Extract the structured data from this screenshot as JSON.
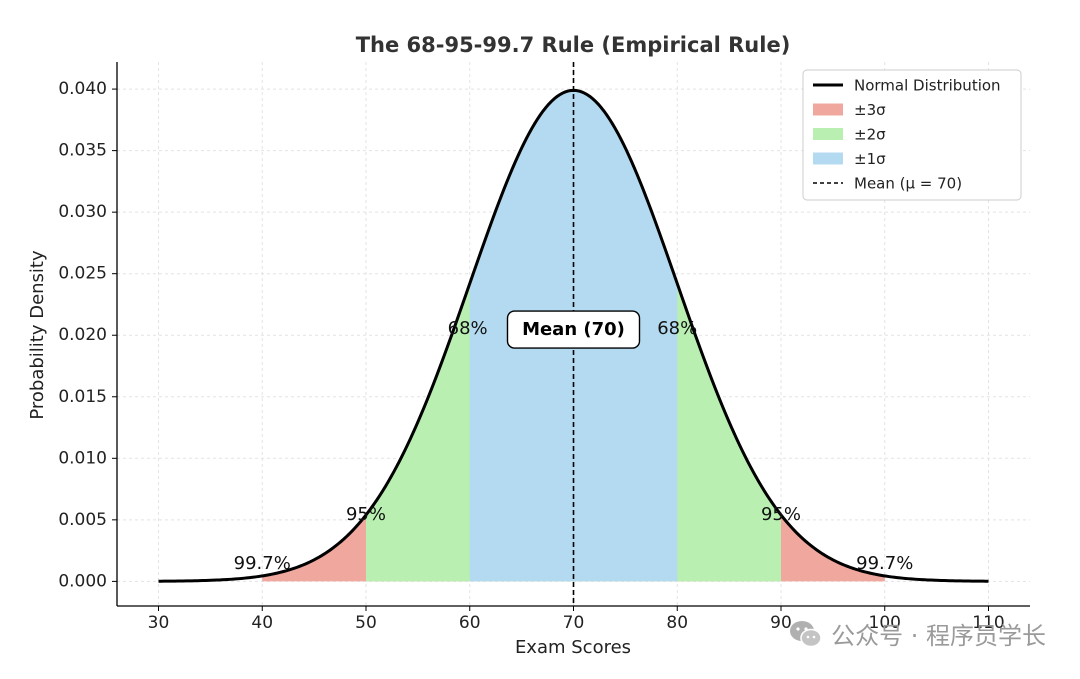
{
  "chart_data": {
    "type": "area",
    "title": "The 68-95-99.7 Rule (Empirical Rule)",
    "xlabel": "Exam Scores",
    "ylabel": "Probability Density",
    "xlim": [
      26,
      114
    ],
    "ylim": [
      -0.002,
      0.0422
    ],
    "xticks": [
      30,
      40,
      50,
      60,
      70,
      80,
      90,
      100,
      110
    ],
    "yticks": [
      0.0,
      0.005,
      0.01,
      0.015,
      0.02,
      0.025,
      0.03,
      0.035,
      0.04
    ],
    "ytick_labels": [
      "0.000",
      "0.005",
      "0.010",
      "0.015",
      "0.020",
      "0.025",
      "0.030",
      "0.035",
      "0.040"
    ],
    "grid": true,
    "legend_position": "top-right",
    "distribution": {
      "mean": 70,
      "std": 10,
      "x_range": [
        30,
        110
      ]
    },
    "series": [
      {
        "name": "Normal Distribution",
        "kind": "line",
        "color": "#000000"
      },
      {
        "name": "±3σ",
        "kind": "fill",
        "range": [
          40,
          100
        ],
        "color": "#f0a89e"
      },
      {
        "name": "±2σ",
        "kind": "fill",
        "range": [
          50,
          90
        ],
        "color": "#b9f0b2"
      },
      {
        "name": "±1σ",
        "kind": "fill",
        "range": [
          60,
          80
        ],
        "color": "#b3daf0"
      },
      {
        "name": "Mean (μ = 70)",
        "kind": "vline",
        "x": 70,
        "color": "#000000"
      }
    ],
    "annotations": [
      {
        "text": "68%",
        "x": 59.8,
        "y": 0.0205
      },
      {
        "text": "68%",
        "x": 80.0,
        "y": 0.0205
      },
      {
        "text": "95%",
        "x": 50.0,
        "y": 0.0054
      },
      {
        "text": "95%",
        "x": 90.0,
        "y": 0.0054
      },
      {
        "text": "99.7%",
        "x": 40.0,
        "y": 0.0014
      },
      {
        "text": "99.7%",
        "x": 100.0,
        "y": 0.0014
      }
    ],
    "mean_label": {
      "text": "Mean (70)",
      "x": 70,
      "y": 0.0205
    }
  },
  "watermark": {
    "text": "公众号 · 程序员学长",
    "icon": "wechat-icon"
  }
}
